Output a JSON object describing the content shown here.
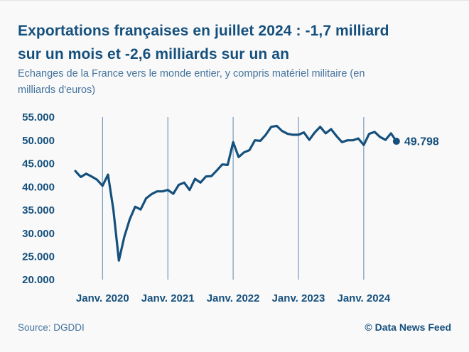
{
  "header": {
    "title_lines": [
      "Exportations françaises en juillet 2024 : -1,7 milliard",
      "sur un mois et -2,6 milliards sur un an"
    ],
    "subtitle_lines": [
      "Echanges de la France vers le monde entier, y compris matériel militaire (en",
      "milliards d'euros)"
    ]
  },
  "chart_data": {
    "type": "line",
    "title": "Exportations françaises en juillet 2024 : -1,7 milliard sur un mois et -2,6 milliards sur un an",
    "subtitle": "Echanges de la France vers le monde entier, y compris matériel militaire (en milliards d'euros)",
    "x_frequency": "monthly",
    "values": [
      43.4,
      42.1,
      42.8,
      42.2,
      41.5,
      40.2,
      42.6,
      35.0,
      24.1,
      29.2,
      33.0,
      35.7,
      35.1,
      37.5,
      38.4,
      39.0,
      39.0,
      39.3,
      38.5,
      40.4,
      40.9,
      39.3,
      41.7,
      40.9,
      42.2,
      42.3,
      43.5,
      44.8,
      44.7,
      49.6,
      46.4,
      47.4,
      47.9,
      50.0,
      49.9,
      51.2,
      52.9,
      53.1,
      52.0,
      51.4,
      51.2,
      51.2,
      51.7,
      50.1,
      51.7,
      52.9,
      51.5,
      52.4,
      50.9,
      49.6,
      50.0,
      50.0,
      50.4,
      49.0,
      51.4,
      51.8,
      50.7,
      50.1,
      51.5,
      49.798
    ],
    "x_tick_labels": [
      "Janv. 2020",
      "Janv. 2021",
      "Janv. 2022",
      "Janv. 2023",
      "Janv. 2024"
    ],
    "x_tick_month_indices": [
      5,
      17,
      29,
      41,
      53
    ],
    "y_tick_values": [
      55,
      50,
      45,
      40,
      35,
      30,
      25,
      20
    ],
    "y_tick_labels": [
      "55.000",
      "50.000",
      "45.000",
      "40.000",
      "35.000",
      "30.000",
      "25.000",
      "20.000"
    ],
    "ylim": [
      20,
      55
    ],
    "grid": "vertical-only",
    "legend": "none",
    "end_label": "49.798",
    "colors": {
      "line": "#15507d",
      "grid": "#5d86ac",
      "tick_text": "#15507d",
      "end_label_text": "#15507d",
      "background": "#f9f9f9"
    }
  },
  "footer": {
    "source": "Source: DGDDI",
    "credit": "© Data News Feed"
  }
}
